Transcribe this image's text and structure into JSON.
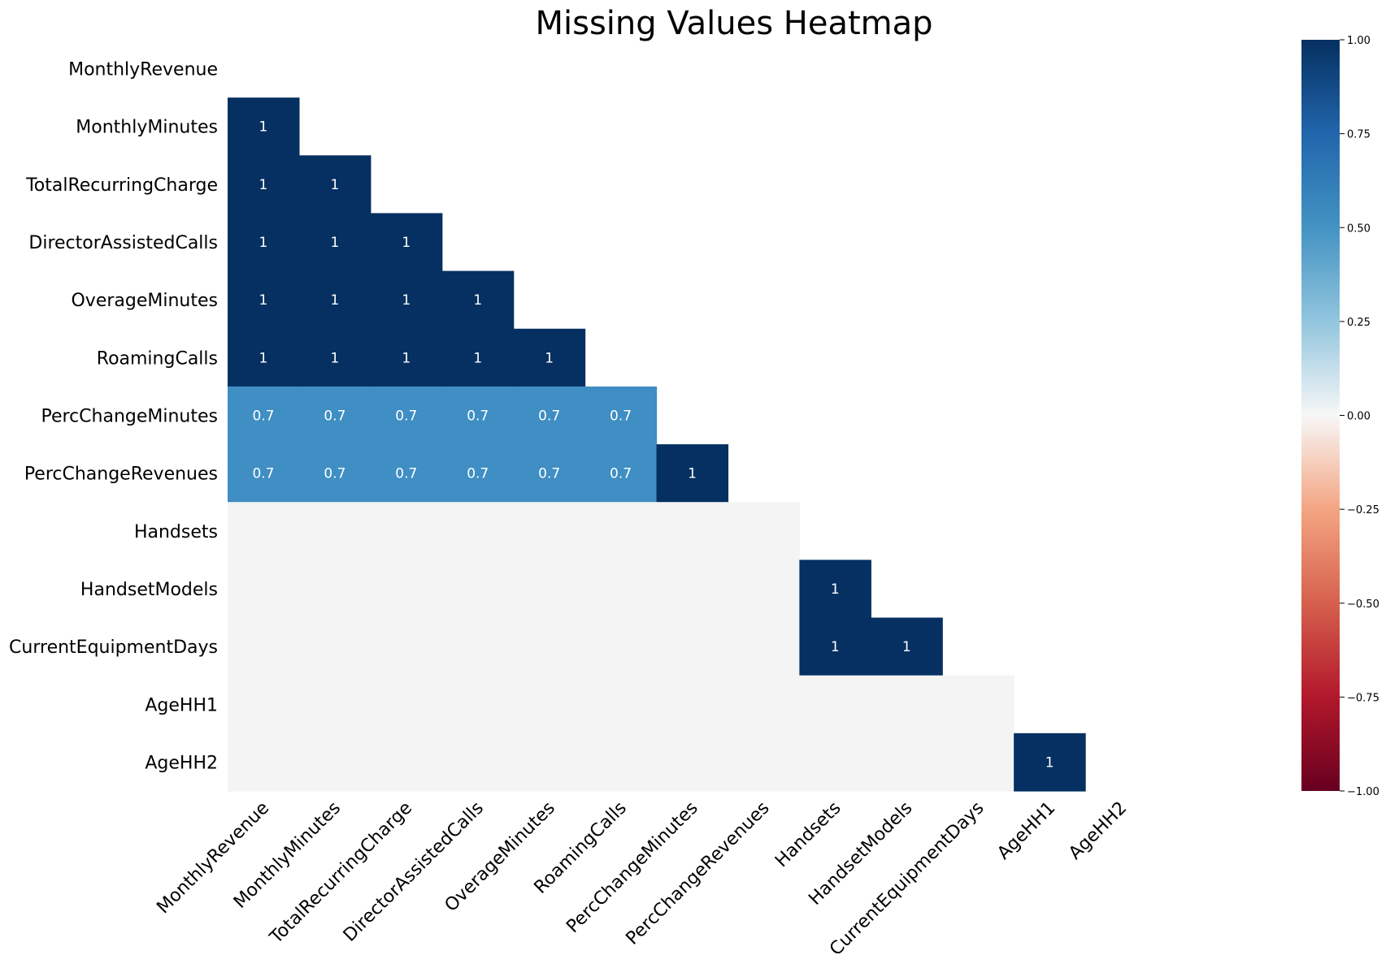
{
  "chart_data": {
    "type": "heatmap",
    "title": "Missing Values Heatmap",
    "xlabel": "",
    "ylabel": "",
    "labels": [
      "MonthlyRevenue",
      "MonthlyMinutes",
      "TotalRecurringCharge",
      "DirectorAssistedCalls",
      "OverageMinutes",
      "RoamingCalls",
      "PercChangeMinutes",
      "PercChangeRevenues",
      "Handsets",
      "HandsetModels",
      "CurrentEquipmentDays",
      "AgeHH1",
      "AgeHH2"
    ],
    "mask": "upper-triangle-including-diagonal",
    "values": [
      [
        null,
        null,
        null,
        null,
        null,
        null,
        null,
        null,
        null,
        null,
        null,
        null,
        null
      ],
      [
        1,
        null,
        null,
        null,
        null,
        null,
        null,
        null,
        null,
        null,
        null,
        null,
        null
      ],
      [
        1,
        1,
        null,
        null,
        null,
        null,
        null,
        null,
        null,
        null,
        null,
        null,
        null
      ],
      [
        1,
        1,
        1,
        null,
        null,
        null,
        null,
        null,
        null,
        null,
        null,
        null,
        null
      ],
      [
        1,
        1,
        1,
        1,
        null,
        null,
        null,
        null,
        null,
        null,
        null,
        null,
        null
      ],
      [
        1,
        1,
        1,
        1,
        1,
        null,
        null,
        null,
        null,
        null,
        null,
        null,
        null
      ],
      [
        0.7,
        0.7,
        0.7,
        0.7,
        0.7,
        0.7,
        null,
        null,
        null,
        null,
        null,
        null,
        null
      ],
      [
        0.7,
        0.7,
        0.7,
        0.7,
        0.7,
        0.7,
        1,
        null,
        null,
        null,
        null,
        null,
        null
      ],
      [
        0,
        0,
        0,
        0,
        0,
        0,
        0,
        0,
        null,
        null,
        null,
        null,
        null
      ],
      [
        0,
        0,
        0,
        0,
        0,
        0,
        0,
        0,
        1,
        null,
        null,
        null,
        null
      ],
      [
        0,
        0,
        0,
        0,
        0,
        0,
        0,
        0,
        1,
        1,
        null,
        null,
        null
      ],
      [
        0,
        0,
        0,
        0,
        0,
        0,
        0,
        0,
        0,
        0,
        0,
        null,
        null
      ],
      [
        0,
        0,
        0,
        0,
        0,
        0,
        0,
        0,
        0,
        0,
        0,
        1,
        null
      ]
    ],
    "colorbar": {
      "colormap": "RdBu",
      "vmin": -1,
      "vmax": 1,
      "ticks": [
        "1.00",
        "0.75",
        "0.50",
        "0.25",
        "0.00",
        "−0.25",
        "−0.50",
        "−0.75",
        "−1.00"
      ],
      "tick_values": [
        1,
        0.75,
        0.5,
        0.25,
        0,
        -0.25,
        -0.5,
        -0.75,
        -1
      ]
    },
    "colors": {
      "value_1": "#053061",
      "value_0_7": "#3f8ec4",
      "value_0": "#f4f4f4"
    }
  }
}
